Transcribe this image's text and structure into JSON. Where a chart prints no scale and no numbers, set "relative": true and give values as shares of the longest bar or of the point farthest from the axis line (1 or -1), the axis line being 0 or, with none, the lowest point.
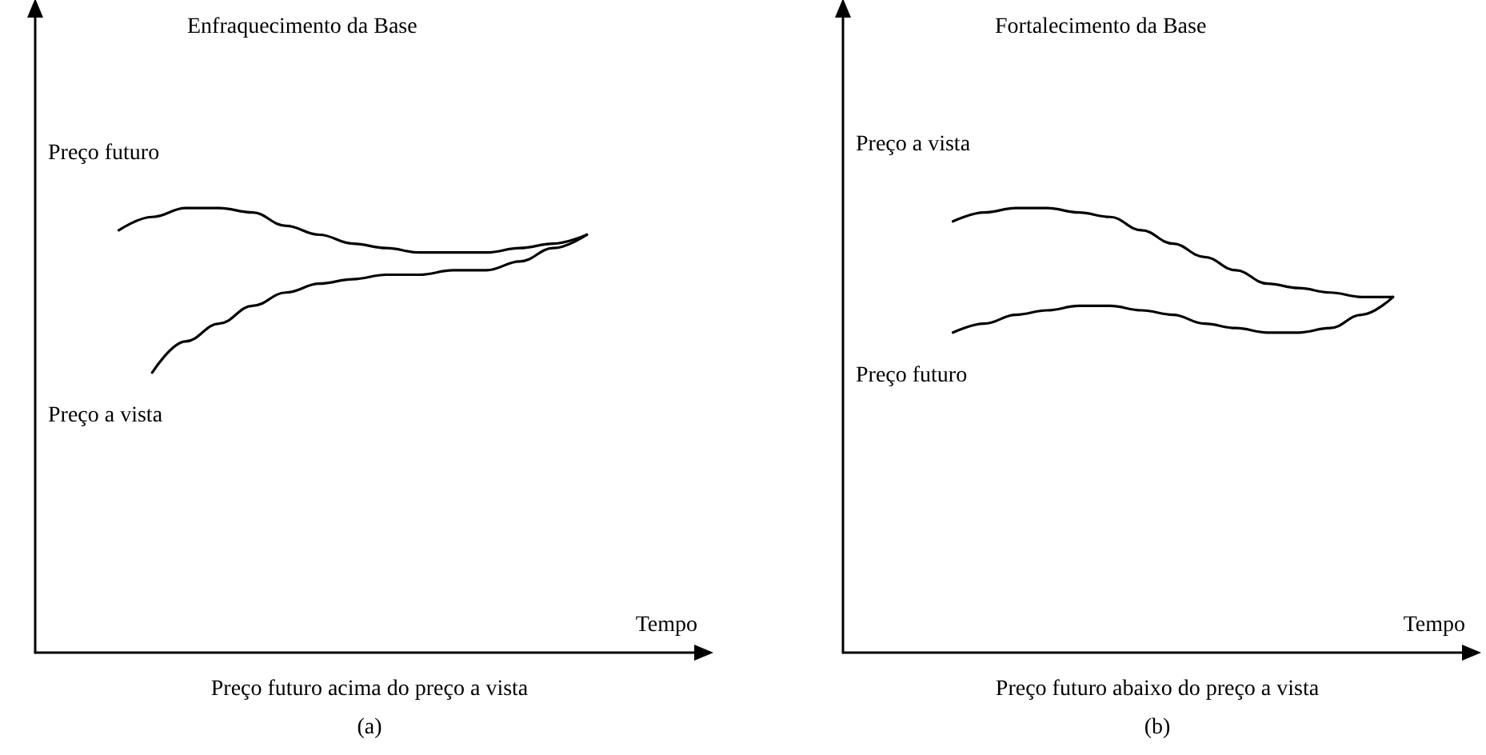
{
  "chart_data": [
    {
      "type": "line",
      "title": "Enfraquecimento da Base",
      "xlabel": "Tempo",
      "relative": true,
      "legend": false,
      "grid": false,
      "marker": "none",
      "line_style": "solid",
      "annotations": [
        "Preço futuro acima do preço a vista",
        "(a)"
      ],
      "categories": [
        null,
        null,
        null,
        null,
        null,
        null,
        null,
        null,
        null,
        null,
        null,
        null,
        null,
        null,
        null,
        null,
        null,
        null,
        null,
        null
      ],
      "series": [
        {
          "name": "Preço futuro",
          "color": "#000000",
          "values": [
            null,
            null,
            0.95,
            0.98,
            1,
            1,
            0.99,
            0.96,
            0.94,
            0.92,
            0.91,
            0.9,
            0.9,
            0.9,
            0.91,
            0.92,
            0.94,
            null,
            null,
            null
          ]
        },
        {
          "name": "Preço a vista",
          "color": "#000000",
          "values": [
            null,
            null,
            null,
            0.63,
            0.7,
            0.74,
            0.78,
            0.81,
            0.83,
            0.84,
            0.85,
            0.85,
            0.86,
            0.86,
            0.88,
            0.91,
            0.94,
            null,
            null,
            null
          ]
        }
      ]
    },
    {
      "type": "line",
      "title": "Fortalecimento da Base",
      "xlabel": "Tempo",
      "relative": true,
      "legend": false,
      "grid": false,
      "marker": "none",
      "line_style": "solid",
      "annotations": [
        "Preço futuro abaixo do preço a vista",
        "(b)"
      ],
      "categories": [
        null,
        null,
        null,
        null,
        null,
        null,
        null,
        null,
        null,
        null,
        null,
        null,
        null,
        null,
        null,
        null,
        null,
        null,
        null,
        null
      ],
      "series": [
        {
          "name": "Preço a vista",
          "color": "#000000",
          "values": [
            null,
            null,
            null,
            0.97,
            0.99,
            1,
            1,
            0.99,
            0.98,
            0.95,
            0.92,
            0.89,
            0.86,
            0.83,
            0.82,
            0.81,
            0.8,
            0.8,
            null,
            null
          ]
        },
        {
          "name": "Preço futuro",
          "color": "#000000",
          "values": [
            null,
            null,
            null,
            0.72,
            0.74,
            0.76,
            0.77,
            0.78,
            0.78,
            0.77,
            0.76,
            0.74,
            0.73,
            0.72,
            0.72,
            0.73,
            0.76,
            0.8,
            null,
            null
          ]
        }
      ]
    }
  ]
}
